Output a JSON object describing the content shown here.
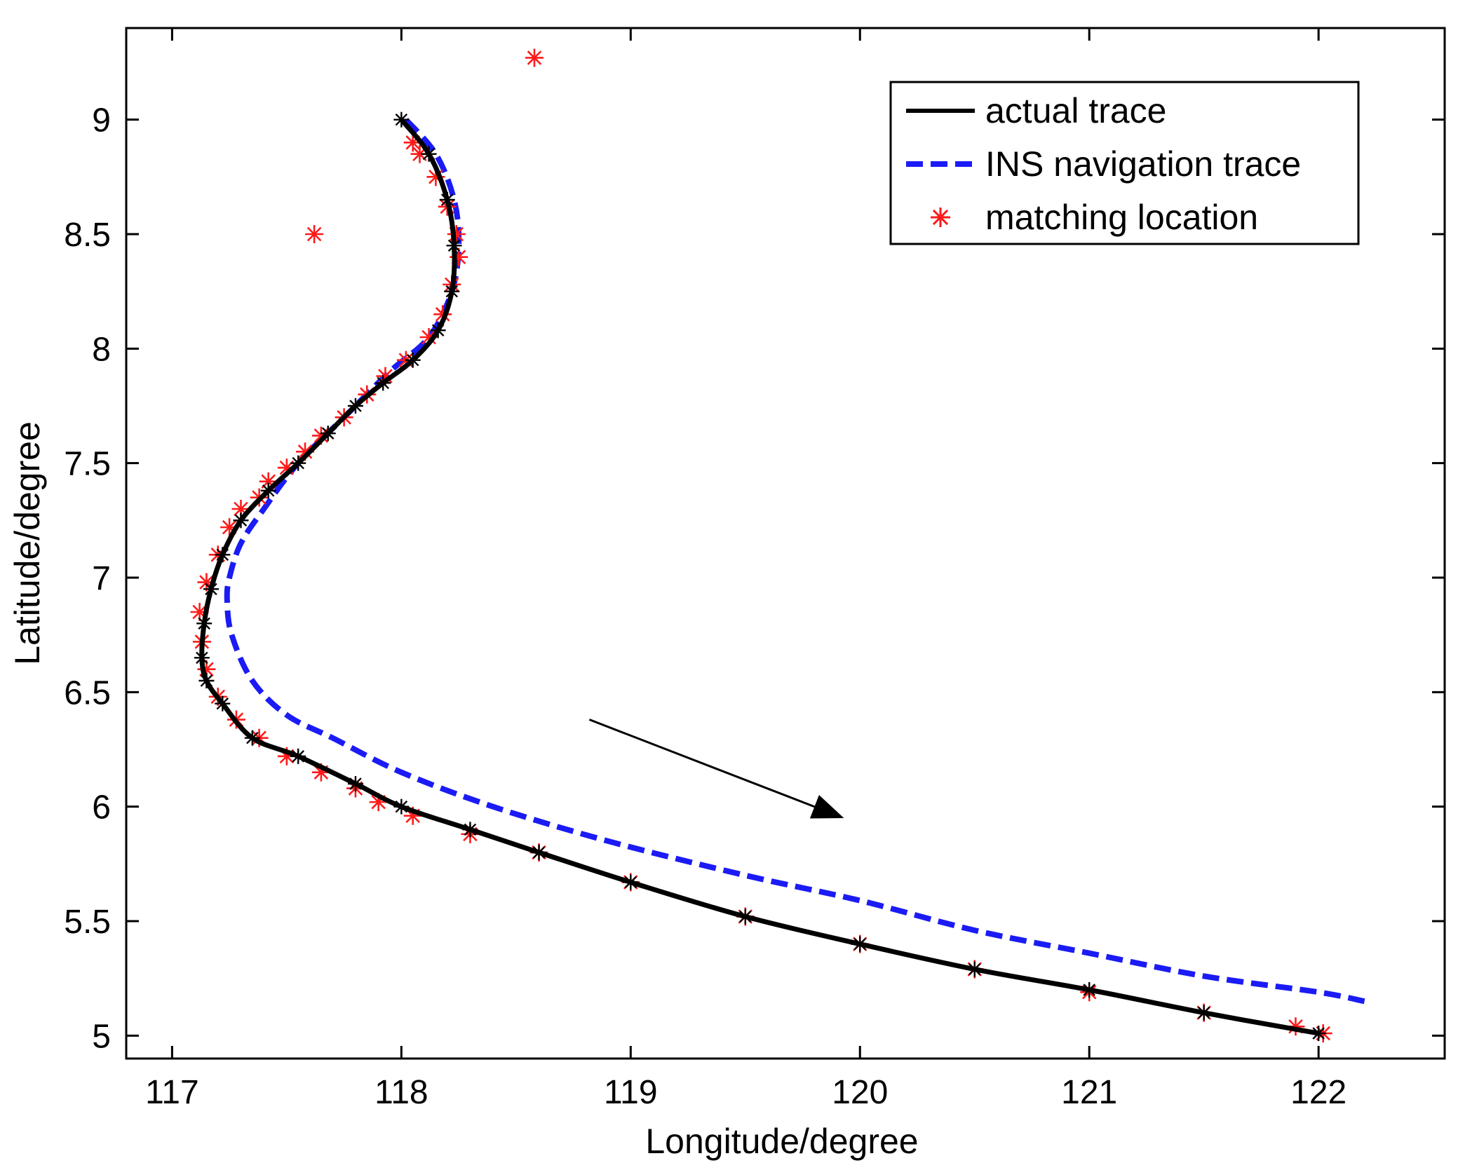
{
  "chart_data": {
    "type": "line",
    "title": "",
    "xlabel": "Longitude/degree",
    "ylabel": "Latitude/degree",
    "xlim": [
      116.8,
      122.55
    ],
    "ylim": [
      4.9,
      9.4
    ],
    "xticks": [
      117,
      118,
      119,
      120,
      121,
      122
    ],
    "yticks": [
      5,
      5.5,
      6,
      6.5,
      7,
      7.5,
      8,
      8.5,
      9
    ],
    "xtick_labels": [
      "117",
      "118",
      "119",
      "120",
      "121",
      "122"
    ],
    "ytick_labels": [
      "5",
      "5.5",
      "6",
      "6.5",
      "7",
      "7.5",
      "8",
      "8.5",
      "9"
    ],
    "grid": false,
    "legend_position": "top-right",
    "series": [
      {
        "name": "actual trace",
        "style": "solid",
        "color": "#000000",
        "marker": "star",
        "x": [
          118.0,
          118.12,
          118.2,
          118.23,
          118.22,
          118.16,
          118.05,
          117.92,
          117.8,
          117.68,
          117.55,
          117.42,
          117.3,
          117.22,
          117.17,
          117.14,
          117.13,
          117.15,
          117.22,
          117.35,
          117.55,
          117.8,
          118.0,
          118.3,
          118.6,
          119.0,
          119.5,
          120.0,
          120.5,
          121.0,
          121.5,
          122.0
        ],
        "y": [
          9.0,
          8.85,
          8.65,
          8.45,
          8.25,
          8.08,
          7.95,
          7.85,
          7.75,
          7.63,
          7.5,
          7.38,
          7.25,
          7.1,
          6.95,
          6.8,
          6.65,
          6.55,
          6.45,
          6.3,
          6.22,
          6.1,
          6.0,
          5.9,
          5.8,
          5.67,
          5.52,
          5.4,
          5.29,
          5.2,
          5.1,
          5.01
        ]
      },
      {
        "name": "INS navigation trace",
        "style": "dashed",
        "color": "#1b1bf5",
        "x": [
          118.02,
          118.15,
          118.23,
          118.25,
          118.22,
          118.12,
          117.95,
          117.75,
          117.55,
          117.4,
          117.3,
          117.25,
          117.24,
          117.26,
          117.35,
          117.5,
          117.7,
          118.0,
          118.4,
          118.9,
          119.5,
          120.0,
          120.5,
          121.0,
          121.5,
          122.0,
          122.2
        ],
        "y": [
          9.0,
          8.85,
          8.65,
          8.45,
          8.25,
          8.05,
          7.9,
          7.7,
          7.5,
          7.3,
          7.15,
          7.0,
          6.9,
          6.75,
          6.55,
          6.4,
          6.3,
          6.15,
          6.0,
          5.85,
          5.7,
          5.59,
          5.46,
          5.36,
          5.26,
          5.19,
          5.15
        ]
      },
      {
        "name": "matching location",
        "style": "markers",
        "color": "#ff1a1a",
        "marker": "star",
        "x": [
          117.62,
          118.58,
          118.05,
          118.08,
          118.15,
          118.2,
          118.24,
          118.25,
          118.22,
          118.18,
          118.12,
          118.02,
          117.93,
          117.85,
          117.75,
          117.65,
          117.58,
          117.5,
          117.42,
          117.38,
          117.3,
          117.25,
          117.2,
          117.15,
          117.12,
          117.13,
          117.15,
          117.2,
          117.28,
          117.38,
          117.5,
          117.65,
          117.8,
          117.9,
          118.05,
          118.3,
          118.6,
          119.0,
          119.5,
          120.0,
          120.5,
          121.0,
          121.5,
          121.9,
          122.02
        ],
        "y": [
          8.5,
          9.27,
          8.9,
          8.85,
          8.75,
          8.62,
          8.5,
          8.4,
          8.28,
          8.15,
          8.05,
          7.95,
          7.88,
          7.8,
          7.7,
          7.62,
          7.55,
          7.48,
          7.42,
          7.35,
          7.3,
          7.22,
          7.1,
          6.98,
          6.85,
          6.72,
          6.6,
          6.48,
          6.38,
          6.3,
          6.22,
          6.15,
          6.08,
          6.02,
          5.96,
          5.88,
          5.8,
          5.67,
          5.52,
          5.4,
          5.29,
          5.19,
          5.1,
          5.04,
          5.01
        ]
      }
    ],
    "annotations": [
      {
        "type": "arrow",
        "from": [
          118.82,
          6.38
        ],
        "to": [
          119.93,
          5.95
        ]
      }
    ]
  }
}
